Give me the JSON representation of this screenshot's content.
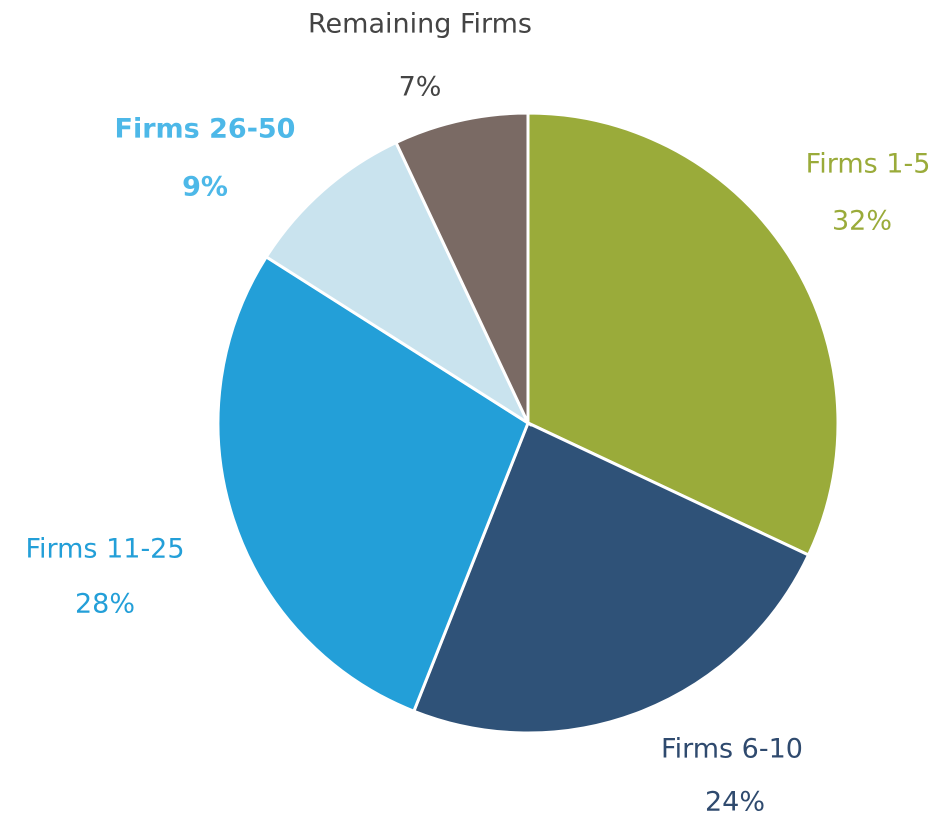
{
  "chart_data": {
    "type": "pie",
    "categories": [
      "Firms 1-5",
      "Firms 6-10",
      "Firms 11-25",
      "Firms 26-50",
      "Remaining Firms"
    ],
    "values": [
      32,
      24,
      28,
      9,
      7
    ],
    "value_labels": [
      "32%",
      "24%",
      "28%",
      "9%",
      "7%"
    ],
    "colors": [
      "#9aab3a",
      "#2f5278",
      "#239fd8",
      "#c9e3ee",
      "#7a6a64"
    ]
  }
}
